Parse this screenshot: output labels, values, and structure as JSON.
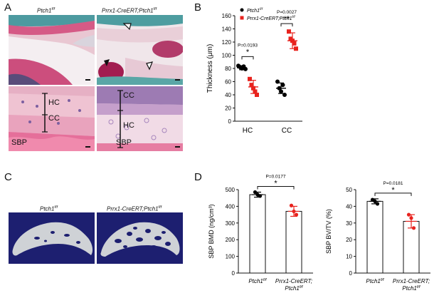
{
  "panels": {
    "A": {
      "letter": "A",
      "header_left": "Ptch1",
      "header_left_sup": "f/f",
      "header_right": "Prrx1-CreERT;Ptch1",
      "header_right_sup": "f/f",
      "zone_labels": [
        "HC",
        "CC",
        "SBP",
        "CC",
        "HC",
        "SBP"
      ]
    },
    "B": {
      "letter": "B",
      "legend": [
        {
          "label": "Ptch1",
          "sup": "f/f",
          "color": "#000000",
          "marker": "circle"
        },
        {
          "label": "Prrx1-CreERT;Ptch1",
          "sup": "f/f",
          "color": "#e8231e",
          "marker": "square"
        }
      ]
    },
    "C": {
      "letter": "C",
      "header_left": "Ptch1",
      "header_left_sup": "f/f",
      "header_right": "Prrx1-CreERT;Ptch1",
      "header_right_sup": "f/f"
    },
    "D": {
      "letter": "D"
    }
  },
  "chart_data": [
    {
      "id": "B",
      "type": "scatter",
      "ylabel": "Thickness (μm)",
      "ylim": [
        0,
        160
      ],
      "yticks": [
        0,
        20,
        40,
        60,
        80,
        100,
        120,
        140,
        160
      ],
      "categories": [
        "HC",
        "CC"
      ],
      "series": [
        {
          "name": "Ptch1 f/f",
          "color": "#000000",
          "points": {
            "HC": [
              84,
              82,
              80,
              83,
              79
            ],
            "CC": [
              60,
              50,
              45,
              55,
              40
            ]
          },
          "mean": {
            "HC": 81,
            "CC": 50
          },
          "sd": {
            "HC": 3,
            "CC": 8
          }
        },
        {
          "name": "Prrx1-CreERT;Ptch1 f/f",
          "color": "#e8231e",
          "points": {
            "HC": [
              64,
              55,
              50,
              45,
              40
            ],
            "CC": [
              136,
              125,
              122,
              118,
              110
            ]
          },
          "mean": {
            "HC": 52,
            "CC": 122
          },
          "sd": {
            "HC": 10,
            "CC": 12
          }
        }
      ],
      "annotations": [
        {
          "category": "HC",
          "p": "P=0.0193",
          "stars": "*"
        },
        {
          "category": "CC",
          "p": "P=0.0027",
          "stars": "**"
        }
      ]
    },
    {
      "id": "D-BMD",
      "type": "bar",
      "ylabel": "SBP BMD (ng/cm³)",
      "ylim": [
        0,
        500
      ],
      "yticks": [
        0,
        100,
        200,
        300,
        400,
        500
      ],
      "categories": [
        {
          "label": "Ptch1",
          "sup": "f/f",
          "line2": "",
          "line2sup": ""
        },
        {
          "label": "Prrx1-CreERT;",
          "sup": "",
          "line2": "Ptch1",
          "line2sup": "f/f"
        }
      ],
      "values": [
        470,
        370
      ],
      "error": [
        15,
        30
      ],
      "points": [
        [
          485,
          470,
          462
        ],
        [
          405,
          370,
          350
        ]
      ],
      "point_colors": [
        "#000000",
        "#e8231e"
      ],
      "annotation": {
        "p": "P=0.0177",
        "stars": "*"
      }
    },
    {
      "id": "D-BVTV",
      "type": "bar",
      "ylabel": "SBP BV/TV (%)",
      "ylim": [
        0,
        50
      ],
      "yticks": [
        0,
        10,
        20,
        30,
        40,
        50
      ],
      "categories": [
        {
          "label": "Ptch1",
          "sup": "f/f",
          "line2": "",
          "line2sup": ""
        },
        {
          "label": "Prrx1-CreERT;",
          "sup": "",
          "line2": "Ptch1",
          "line2sup": "f/f"
        }
      ],
      "values": [
        43,
        31
      ],
      "error": [
        1.5,
        4
      ],
      "points": [
        [
          44,
          43,
          41.5
        ],
        [
          35,
          33,
          27
        ]
      ],
      "point_colors": [
        "#000000",
        "#e8231e"
      ],
      "annotation": {
        "p": "P=0.0181",
        "stars": "*"
      }
    }
  ]
}
